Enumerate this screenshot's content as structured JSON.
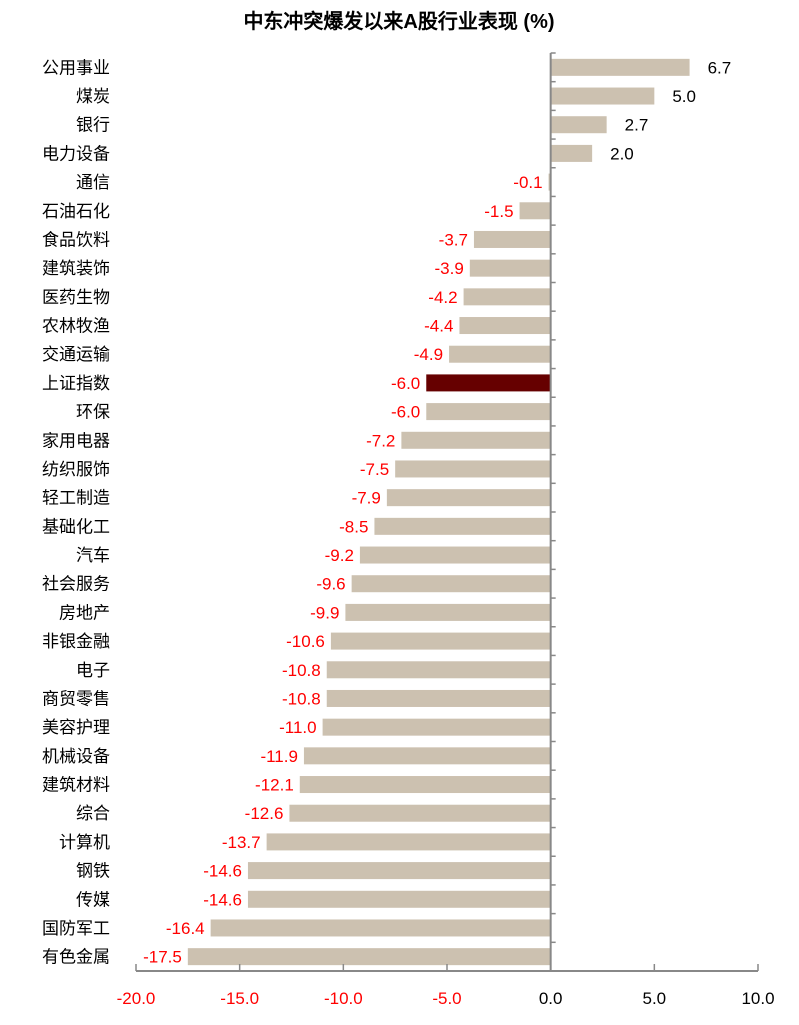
{
  "chart_data": {
    "type": "bar",
    "orientation": "horizontal",
    "title": "中东冲突爆发以来A股行业表现 (%)",
    "categories": [
      "公用事业",
      "煤炭",
      "银行",
      "电力设备",
      "通信",
      "石油石化",
      "食品饮料",
      "建筑装饰",
      "医药生物",
      "农林牧渔",
      "交通运输",
      "上证指数",
      "环保",
      "家用电器",
      "纺织服饰",
      "轻工制造",
      "基础化工",
      "汽车",
      "社会服务",
      "房地产",
      "非银金融",
      "电子",
      "商贸零售",
      "美容护理",
      "机械设备",
      "建筑材料",
      "综合",
      "计算机",
      "钢铁",
      "传媒",
      "国防军工",
      "有色金属"
    ],
    "values": [
      6.7,
      5.0,
      2.7,
      2.0,
      -0.1,
      -1.5,
      -3.7,
      -3.9,
      -4.2,
      -4.4,
      -4.9,
      -6.0,
      -6.0,
      -7.2,
      -7.5,
      -7.9,
      -8.5,
      -9.2,
      -9.6,
      -9.9,
      -10.6,
      -10.8,
      -10.8,
      -11.0,
      -11.9,
      -12.1,
      -12.6,
      -13.7,
      -14.6,
      -14.6,
      -16.4,
      -17.5
    ],
    "highlight_category": "上证指数",
    "xlim": [
      -20,
      10
    ],
    "xticks": [
      "-20.0",
      "-15.0",
      "-10.0",
      "-5.0",
      "0.0",
      "5.0",
      "10.0"
    ],
    "xtick_values": [
      -20,
      -15,
      -10,
      -5,
      0,
      5,
      10
    ],
    "grid": false,
    "colors": {
      "bar": "#CCC1B0",
      "highlight": "#660000",
      "negative_label": "#FF0000",
      "positive_label": "#000000",
      "axis": "#888888"
    }
  }
}
